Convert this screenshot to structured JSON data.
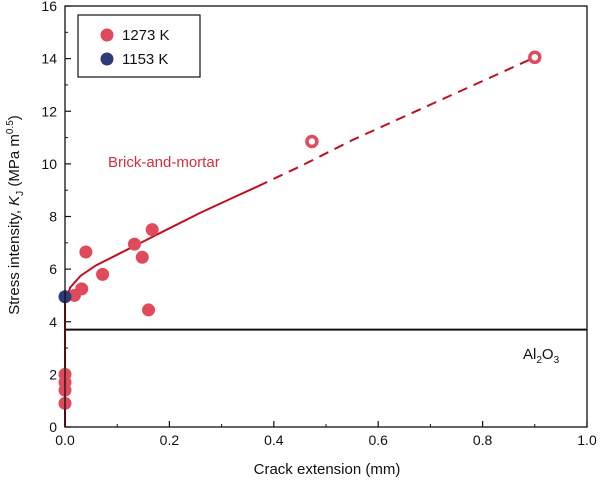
{
  "chart_data": {
    "type": "scatter",
    "xlabel": "Crack extension (mm)",
    "ylabel": "Stress intensity, ",
    "ylabel_symbol": "K",
    "ylabel_subscript": "J",
    "ylabel_unit_pre": " (MPa m",
    "ylabel_unit_sup": "0.5",
    "ylabel_unit_post": ")",
    "xlim": [
      0,
      1.0
    ],
    "ylim": [
      0,
      16
    ],
    "xticks": [
      "0.0",
      "0.2",
      "0.4",
      "0.6",
      "0.8",
      "1.0"
    ],
    "yticks": [
      "0",
      "2",
      "4",
      "6",
      "8",
      "10",
      "12",
      "14",
      "16"
    ],
    "grid": false,
    "legend_position": "top-left",
    "colors": {
      "red": "#e04a5a",
      "blue": "#2e3a7a",
      "curve": "#c01020",
      "annot": "#d23040"
    },
    "series": [
      {
        "name": "1273 K",
        "marker": "filled-circle",
        "points": [
          [
            0.0,
            0.9
          ],
          [
            0.0,
            1.4
          ],
          [
            0.0,
            1.7
          ],
          [
            0.0,
            2.0
          ],
          [
            0.018,
            5.0
          ],
          [
            0.032,
            5.25
          ],
          [
            0.04,
            6.65
          ],
          [
            0.072,
            5.8
          ],
          [
            0.133,
            6.95
          ],
          [
            0.148,
            6.45
          ],
          [
            0.16,
            4.45
          ],
          [
            0.167,
            7.5
          ]
        ]
      },
      {
        "name": "1153 K",
        "marker": "filled-circle",
        "points": [
          [
            0.0,
            4.95
          ]
        ]
      },
      {
        "name": "",
        "marker": "open-circle",
        "points": [
          [
            0.473,
            10.85
          ],
          [
            0.9,
            14.05
          ]
        ]
      }
    ],
    "fit_curve": {
      "solid": [
        [
          0.0,
          0.0
        ],
        [
          0.0,
          4.7
        ],
        [
          0.01,
          5.3
        ],
        [
          0.03,
          5.75
        ],
        [
          0.06,
          6.15
        ],
        [
          0.1,
          6.55
        ],
        [
          0.15,
          7.05
        ],
        [
          0.2,
          7.55
        ],
        [
          0.26,
          8.15
        ],
        [
          0.32,
          8.7
        ],
        [
          0.37,
          9.15
        ]
      ],
      "dashed": [
        [
          0.37,
          9.15
        ],
        [
          0.45,
          9.9
        ],
        [
          0.55,
          10.9
        ],
        [
          0.65,
          11.8
        ],
        [
          0.75,
          12.7
        ],
        [
          0.85,
          13.6
        ],
        [
          0.9,
          14.05
        ]
      ]
    },
    "reference_line": {
      "y": 3.7,
      "label_base": "Al",
      "label_sub1": "2",
      "label_mid": "O",
      "label_sub2": "3"
    },
    "annotation": "Brick-and-mortar"
  }
}
